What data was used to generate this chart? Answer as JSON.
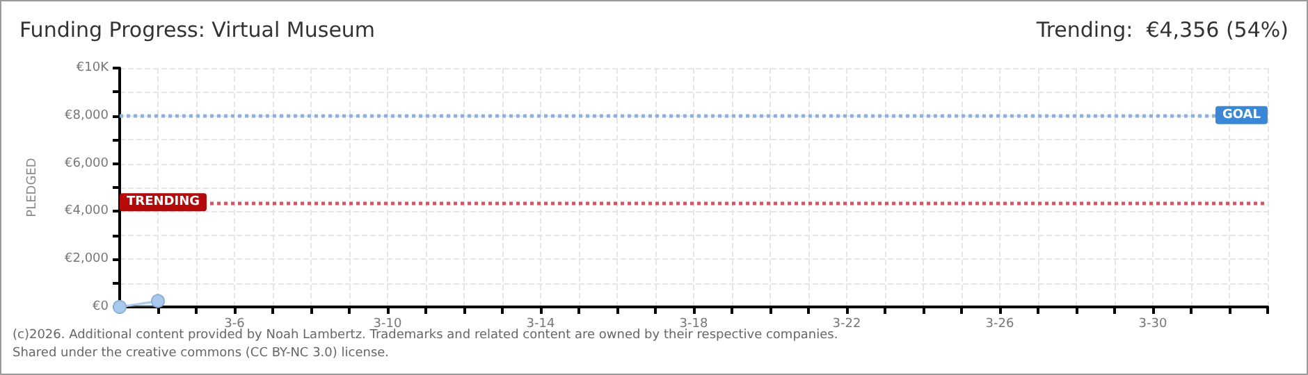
{
  "chart_data": {
    "type": "area",
    "title": "Funding Progress: Virtual Museum",
    "subtitle": "Trending:  €4,356 (54%)",
    "ylabel": "PLEDGED",
    "x": [
      "--03-03",
      "--03-04"
    ],
    "series": [
      {
        "color": "#a9c9ef",
        "values": [
          0,
          250
        ]
      }
    ],
    "marker": "circle",
    "xlim": [
      "--03-03",
      "--04-02"
    ],
    "xticks": [
      {
        "value": "--03-03",
        "label": null
      },
      {
        "value": "--03-04",
        "label": null
      },
      {
        "value": "--03-05",
        "label": null
      },
      {
        "value": "--03-06",
        "label": "3-6"
      },
      {
        "value": "--03-07",
        "label": null
      },
      {
        "value": "--03-08",
        "label": null
      },
      {
        "value": "--03-09",
        "label": null
      },
      {
        "value": "--03-10",
        "label": "3-10"
      },
      {
        "value": "--03-11",
        "label": null
      },
      {
        "value": "--03-12",
        "label": null
      },
      {
        "value": "--03-13",
        "label": null
      },
      {
        "value": "--03-14",
        "label": "3-14"
      },
      {
        "value": "--03-15",
        "label": null
      },
      {
        "value": "--03-16",
        "label": null
      },
      {
        "value": "--03-17",
        "label": null
      },
      {
        "value": "--03-18",
        "label": "3-18"
      },
      {
        "value": "--03-19",
        "label": null
      },
      {
        "value": "--03-20",
        "label": null
      },
      {
        "value": "--03-21",
        "label": null
      },
      {
        "value": "--03-22",
        "label": "3-22"
      },
      {
        "value": "--03-23",
        "label": null
      },
      {
        "value": "--03-24",
        "label": null
      },
      {
        "value": "--03-25",
        "label": null
      },
      {
        "value": "--03-26",
        "label": "3-26"
      },
      {
        "value": "--03-27",
        "label": null
      },
      {
        "value": "--03-28",
        "label": null
      },
      {
        "value": "--03-29",
        "label": null
      },
      {
        "value": "--03-30",
        "label": "3-30"
      },
      {
        "value": "--03-31",
        "label": null
      },
      {
        "value": "--04-01",
        "label": null
      },
      {
        "value": "--04-02",
        "label": null
      }
    ],
    "ylim": [
      0,
      10000
    ],
    "yticks": [
      {
        "value": 0,
        "label": "€0"
      },
      {
        "value": 1000,
        "label": null
      },
      {
        "value": 2000,
        "label": "€2,000"
      },
      {
        "value": 3000,
        "label": null
      },
      {
        "value": 4000,
        "label": "€4,000"
      },
      {
        "value": 5000,
        "label": null
      },
      {
        "value": 6000,
        "label": "€6,000"
      },
      {
        "value": 7000,
        "label": null
      },
      {
        "value": 8000,
        "label": "€8,000"
      },
      {
        "value": 9000,
        "label": null
      },
      {
        "value": 10000,
        "label": "€10K"
      }
    ],
    "grid": true,
    "ref_lines": [
      {
        "axis": "y",
        "value": 8000,
        "label": "GOAL",
        "color": "#8fb0d8",
        "line_style": "dotted"
      },
      {
        "axis": "y",
        "value": 4356,
        "label": "TRENDING",
        "color": "#cc5a64",
        "line_style": "dotted"
      }
    ],
    "annotations": [
      "(c)2026. Additional content provided by Noah Lambertz. Trademarks and related content are owned by their respective companies.",
      "Shared under the creative commons (CC BY-NC 3.0) license."
    ]
  }
}
